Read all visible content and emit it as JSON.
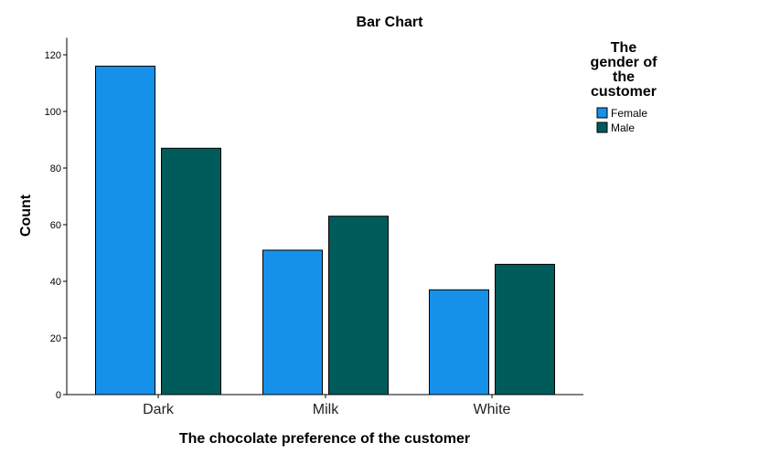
{
  "chart_data": {
    "type": "bar",
    "title": "Bar Chart",
    "xlabel": "The chocolate preference of the customer",
    "ylabel": "Count",
    "categories": [
      "Dark",
      "Milk",
      "White"
    ],
    "series": [
      {
        "name": "Female",
        "values": [
          116,
          51,
          37
        ],
        "color": "#1591ea"
      },
      {
        "name": "Male",
        "values": [
          87,
          63,
          46
        ],
        "color": "#005b5b"
      }
    ],
    "ylim": [
      0,
      126
    ],
    "yticks": [
      0,
      20,
      40,
      60,
      80,
      100,
      120
    ],
    "grid": false,
    "legend": {
      "title_lines": [
        "The",
        "gender of",
        "the",
        "customer"
      ],
      "position": "top-right"
    }
  }
}
